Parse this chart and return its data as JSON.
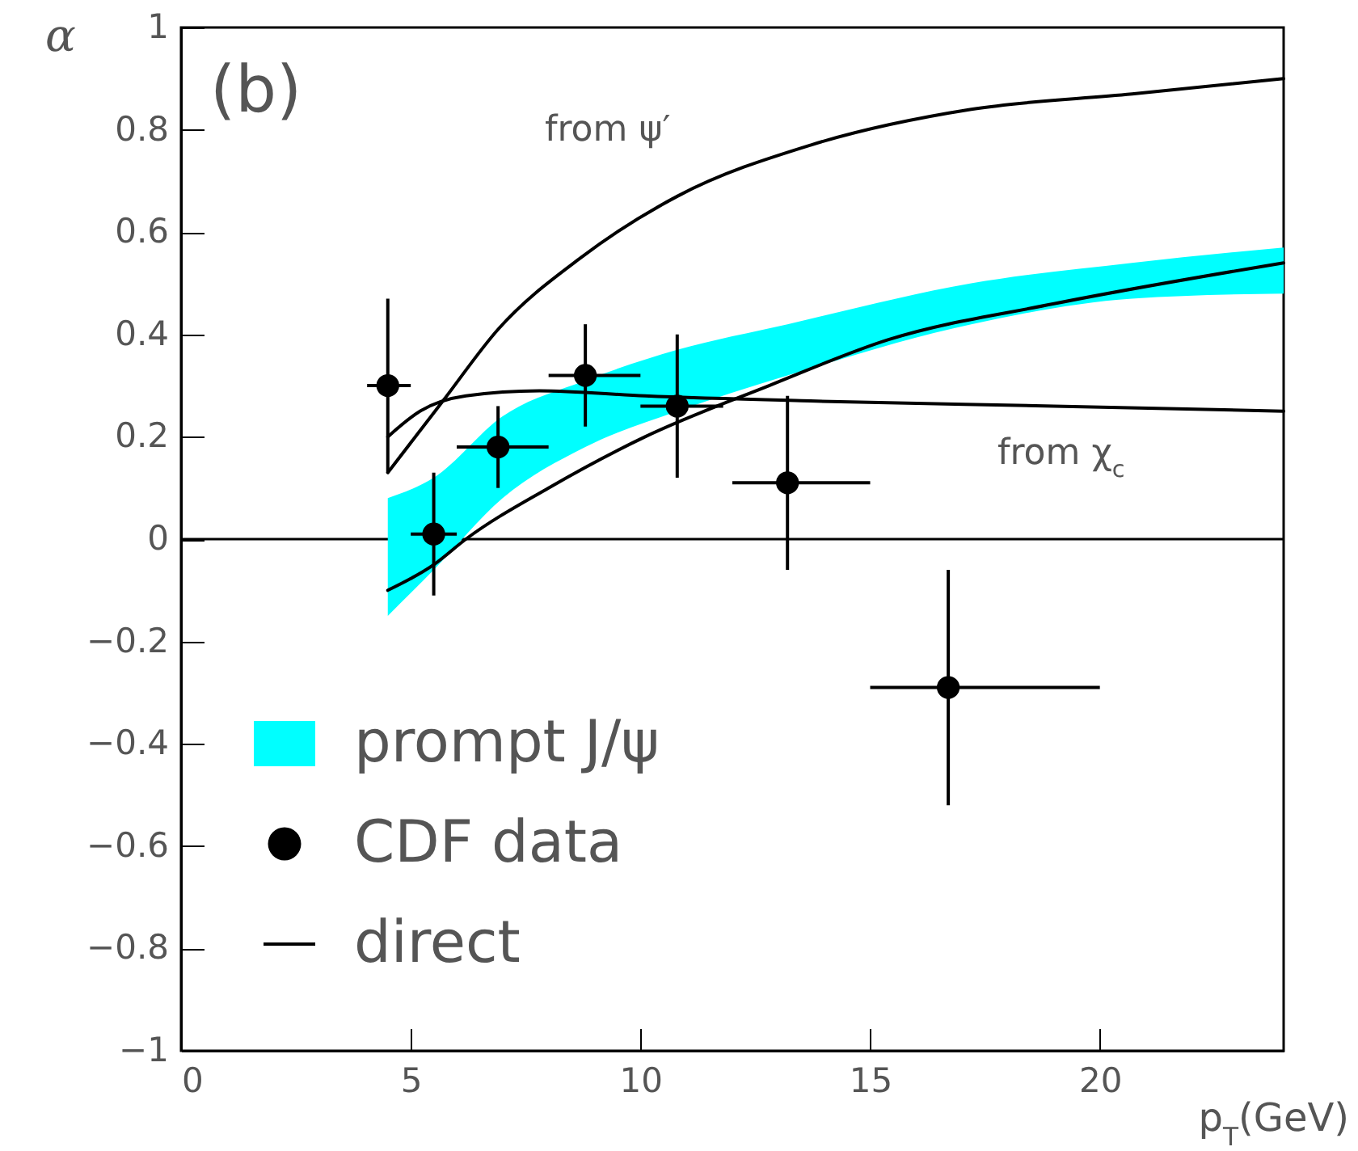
{
  "chart_data": {
    "type": "line",
    "xlabel": "p$_{T}$(GeV)",
    "ylabel": "α",
    "xlim": [
      0,
      24
    ],
    "xticks": [
      0,
      5,
      10,
      15,
      20
    ],
    "ylim": [
      -1,
      1
    ],
    "yticks": [
      -1,
      -0.8,
      -0.6,
      -0.4,
      -0.2,
      0,
      0.2,
      0.4,
      0.6,
      0.8,
      1
    ],
    "grid": false,
    "legend": "bottom left",
    "line_style": "solid",
    "annotations": [
      "(b)",
      "from ψ′",
      "from χ$_{c}$"
    ],
    "ref_lines": [
      {
        "axis": "y",
        "value": 0,
        "color": "#000000"
      }
    ],
    "series": [
      {
        "name": "prompt J/ψ",
        "type": "area",
        "color": "#00ffff",
        "x": [
          4.5,
          5.5,
          7,
          8.8,
          10.8,
          13.2,
          17.2,
          20.7,
          24
        ],
        "values": [
          null,
          null,
          null,
          null,
          null,
          null,
          null,
          null,
          null
        ],
        "lower": [
          -0.15,
          -0.06,
          0.08,
          0.18,
          0.25,
          0.32,
          0.42,
          0.47,
          0.48
        ],
        "upper": [
          0.08,
          0.12,
          0.24,
          0.31,
          0.37,
          0.42,
          0.5,
          0.54,
          0.57
        ]
      },
      {
        "name": "CDF data",
        "type": "scatter",
        "color": "#000000",
        "marker": "circle",
        "x": [
          4.5,
          5.5,
          6.9,
          8.8,
          10.8,
          13.2,
          16.7
        ],
        "values": [
          0.3,
          0.01,
          0.18,
          0.32,
          0.26,
          0.11,
          -0.29
        ],
        "errors": [
          0.17,
          0.12,
          0.08,
          0.1,
          0.14,
          0.17,
          0.23
        ],
        "xerrors": [
          [
            4.05,
            5
          ],
          [
            5,
            6
          ],
          [
            6,
            8
          ],
          [
            8,
            10
          ],
          [
            10,
            11.8
          ],
          [
            12,
            15
          ],
          [
            15,
            20
          ]
        ]
      },
      {
        "name": "direct",
        "color": "#000000",
        "x": [
          4.5,
          5.5,
          6.2,
          8,
          10.1,
          12.8,
          15.4,
          19,
          24
        ],
        "values": [
          -0.1,
          -0.05,
          0,
          0.1,
          0.2,
          0.3,
          0.39,
          0.46,
          0.54
        ]
      },
      {
        "color": "#000000",
        "x": [
          4.5,
          5.7,
          6.9,
          8.7,
          10.8,
          13.7,
          17.2,
          20.7,
          24
        ],
        "values": [
          0.13,
          0.27,
          0.41,
          0.55,
          0.67,
          0.77,
          0.84,
          0.87,
          0.9
        ]
      },
      {
        "color": "#000000",
        "x": [
          4.5,
          5.2,
          6.2,
          7.8,
          10.1,
          13.7,
          19,
          24
        ],
        "values": [
          0.2,
          0.25,
          0.28,
          0.29,
          0.28,
          0.27,
          0.26,
          0.25
        ]
      }
    ]
  }
}
